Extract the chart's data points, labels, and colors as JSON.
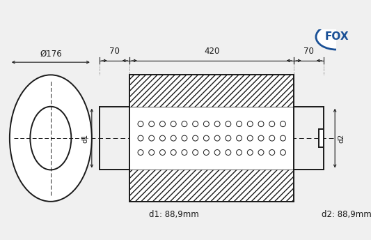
{
  "bg_color": "#f0f0f0",
  "line_color": "#1a1a1a",
  "fox_blue": "#1a5096",
  "d1_label": "d1: 88,9mm",
  "d2_label": "d2: 88,9mm",
  "dia_label": "Ø176",
  "len_420": "420",
  "len_70_left": "70",
  "len_70_right": "70",
  "d1_side": "d1",
  "d2_side": "d2",
  "font_size": 8.5,
  "font_size_small": 7.5,
  "lw_main": 1.4,
  "lw_thin": 0.8,
  "lw_dim": 0.8
}
